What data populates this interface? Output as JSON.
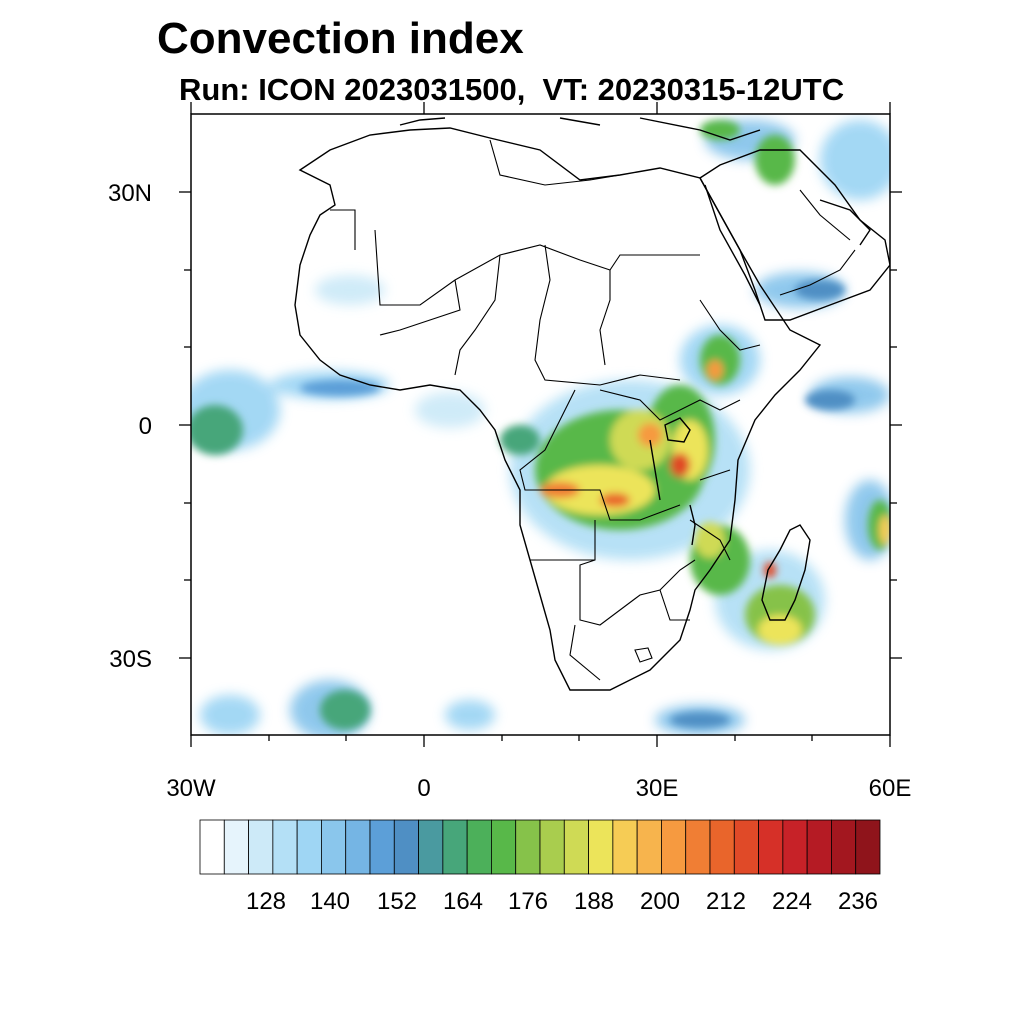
{
  "title": "Convection index",
  "subtitle": "Run: ICON 2023031500,  VT: 20230315-12UTC",
  "axes": {
    "lat_labels": [
      "30N",
      "0",
      "30S"
    ],
    "lon_labels": [
      "30W",
      "0",
      "30E",
      "60E"
    ]
  },
  "colorbar": {
    "labels": [
      "128",
      "140",
      "152",
      "164",
      "176",
      "188",
      "200",
      "212",
      "224",
      "236"
    ],
    "colors": [
      "#ffffff",
      "#e6f4fc",
      "#cdeaf8",
      "#b4e0f6",
      "#9fd6f4",
      "#8ac6ec",
      "#75b5e4",
      "#5c9fd8",
      "#4f8fc4",
      "#4a9aa0",
      "#47a67a",
      "#4cb05a",
      "#58b849",
      "#86c24a",
      "#a9cd4e",
      "#cfda55",
      "#ece45a",
      "#f6cc55",
      "#f7b44d",
      "#f69a40",
      "#f07e34",
      "#e9652b",
      "#e04a28",
      "#d63028",
      "#c72228",
      "#b51b24",
      "#a3171f",
      "#8f141b"
    ]
  },
  "map_data": {
    "region": "Africa",
    "lon_range": [
      -30,
      60
    ],
    "lat_range": [
      -40,
      40
    ],
    "field": "Convection index"
  }
}
